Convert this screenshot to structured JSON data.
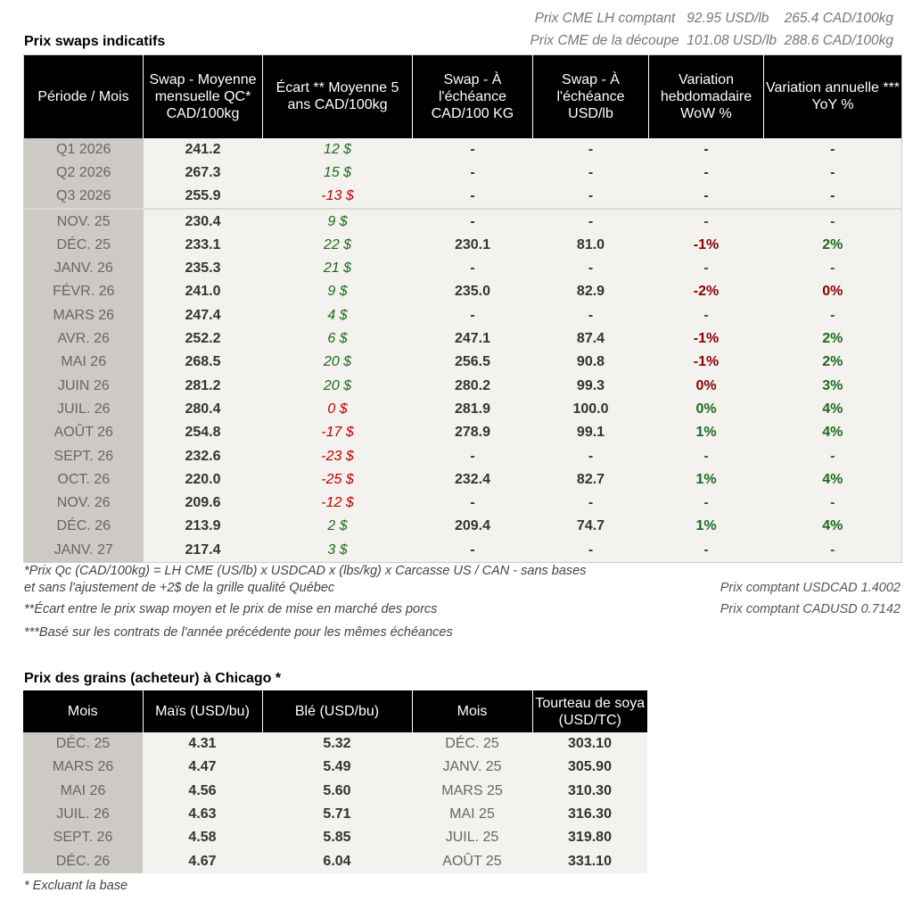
{
  "cme": {
    "line1": {
      "label": "Prix CME LH comptant",
      "usd": "92.95 USD/lb",
      "cad": "265.4 CAD/100kg"
    },
    "line2": {
      "label": "Prix CME de la découpe",
      "usd": "101.08 USD/lb",
      "cad": "288.6 CAD/100kg"
    }
  },
  "swaps": {
    "title": "Prix swaps indicatifs",
    "headers": [
      "Période / Mois",
      "Swap - Moyenne mensuelle QC* CAD/100kg",
      "Écart ** Moyenne 5 ans CAD/100kg",
      "Swap - À l'échéance CAD/100 KG",
      "Swap - À l'échéance USD/lb",
      "Variation hebdomadaire WoW %",
      "Variation annuelle *** YoY %"
    ],
    "rows": [
      [
        "Q1 2026",
        "241.2",
        "12 $",
        "-",
        "-",
        "-",
        "-"
      ],
      [
        "Q2 2026",
        "267.3",
        "15 $",
        "-",
        "-",
        "-",
        "-"
      ],
      [
        "Q3 2026",
        "255.9",
        "-13 $",
        "-",
        "-",
        "-",
        "-"
      ],
      [
        "NOV. 25",
        "230.4",
        "9 $",
        "-",
        "-",
        "-",
        "-"
      ],
      [
        "DÉC. 25",
        "233.1",
        "22 $",
        "230.1",
        "81.0",
        "-1%",
        "2%"
      ],
      [
        "JANV. 26",
        "235.3",
        "21 $",
        "-",
        "-",
        "-",
        "-"
      ],
      [
        "FÉVR. 26",
        "241.0",
        "9 $",
        "235.0",
        "82.9",
        "-2%",
        "0%"
      ],
      [
        "MARS 26",
        "247.4",
        "4 $",
        "-",
        "-",
        "-",
        "-"
      ],
      [
        "AVR. 26",
        "252.2",
        "6 $",
        "247.1",
        "87.4",
        "-1%",
        "2%"
      ],
      [
        "MAI 26",
        "268.5",
        "20 $",
        "256.5",
        "90.8",
        "-1%",
        "2%"
      ],
      [
        "JUIN 26",
        "281.2",
        "20 $",
        "280.2",
        "99.3",
        "0%",
        "3%"
      ],
      [
        "JUIL. 26",
        "280.4",
        "0 $",
        "281.9",
        "100.0",
        "0%",
        "4%"
      ],
      [
        "AOÛT 26",
        "254.8",
        "-17 $",
        "278.9",
        "99.1",
        "1%",
        "4%"
      ],
      [
        "SEPT. 26",
        "232.6",
        "-23 $",
        "-",
        "-",
        "-",
        "-"
      ],
      [
        "OCT. 26",
        "220.0",
        "-25 $",
        "232.4",
        "82.7",
        "1%",
        "4%"
      ],
      [
        "NOV. 26",
        "209.6",
        "-12 $",
        "-",
        "-",
        "-",
        "-"
      ],
      [
        "DÉC. 26",
        "213.9",
        "2 $",
        "209.4",
        "74.7",
        "1%",
        "4%"
      ],
      [
        "JANV. 27",
        "217.4",
        "3 $",
        "-",
        "-",
        "-",
        "-"
      ]
    ],
    "colors": {
      "ecart": [
        "g",
        "g",
        "r",
        "g",
        "g",
        "g",
        "g",
        "g",
        "g",
        "g",
        "g",
        "r",
        "r",
        "r",
        "r",
        "r",
        "g",
        "g"
      ],
      "wow": [
        "",
        "",
        "",
        "pg",
        "pr",
        "pg",
        "pr",
        "pg",
        "pr",
        "pr",
        "pr",
        "pg",
        "pg",
        "pg",
        "pg",
        "pg",
        "pg",
        "pg"
      ],
      "yoy": [
        "",
        "",
        "",
        "pg",
        "pg",
        "pg",
        "pr",
        "pg",
        "pg",
        "pg",
        "pg",
        "pg",
        "pg",
        "pg",
        "pg",
        "pg",
        "pg",
        "pg"
      ]
    },
    "notes": [
      "*Prix Qc (CAD/100kg) = LH CME (US/lb) x USDCAD x (lbs/kg) x Carcasse US / CAN - sans bases",
      "et sans l'ajustement de +2$ de la grille qualité Québec",
      "**Écart entre le prix swap moyen et le prix de mise en marché des porcs",
      "***Basé sur les contrats de l'année précédente pour les mêmes échéances"
    ],
    "fx": [
      "Prix comptant USDCAD 1.4002",
      "Prix comptant CADUSD 0.7142"
    ]
  },
  "grains": {
    "title": "Prix des grains (acheteur) à Chicago *",
    "headers": [
      "Mois",
      "Maïs (USD/bu)",
      "Blé (USD/bu)",
      "Mois",
      "Tourteau de soya (USD/TC)"
    ],
    "rows": [
      [
        "DÉC. 25",
        "4.31",
        "5.32",
        "DÉC. 25",
        "303.10"
      ],
      [
        "MARS 26",
        "4.47",
        "5.49",
        "JANV. 25",
        "305.90"
      ],
      [
        "MAI 26",
        "4.56",
        "5.60",
        "MARS 25",
        "310.30"
      ],
      [
        "JUIL. 26",
        "4.63",
        "5.71",
        "MAI 25",
        "316.30"
      ],
      [
        "SEPT. 26",
        "4.58",
        "5.85",
        "JUIL. 25",
        "319.80"
      ],
      [
        "DÉC. 26",
        "4.67",
        "6.04",
        "AOÛT 25",
        "331.10"
      ]
    ],
    "note": "* Excluant la base"
  }
}
